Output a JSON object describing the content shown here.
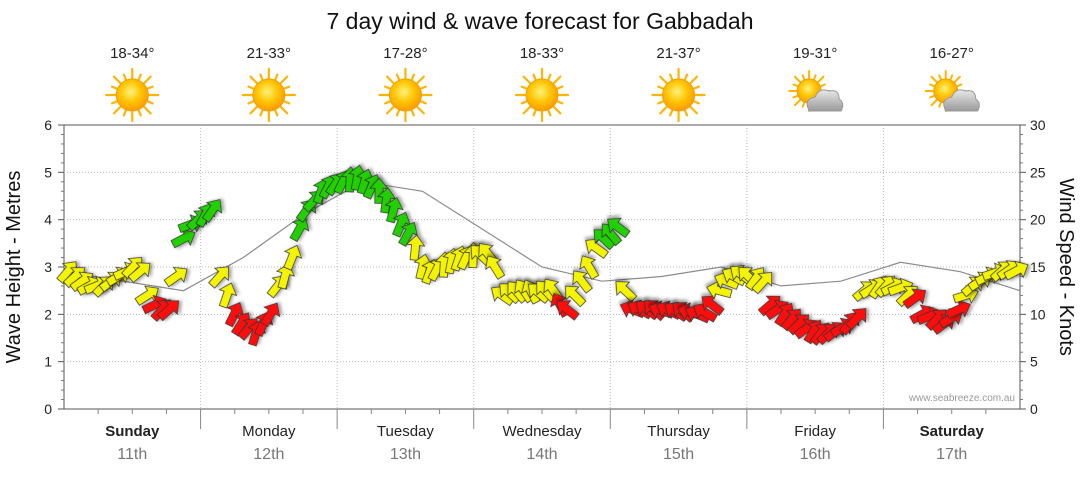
{
  "chart_data": {
    "type": "line",
    "title": "7 day wind & wave forecast for Gabbadah",
    "ylabel_left": "Wave Height - Metres",
    "ylabel_right": "Wind Speed - Knots",
    "ylim_left": [
      0,
      6
    ],
    "ylim_right": [
      0,
      30
    ],
    "yticks_left": [
      "0",
      "1",
      "2",
      "3",
      "4",
      "5",
      "6"
    ],
    "yticks_right": [
      "0",
      "5",
      "10",
      "15",
      "20",
      "25",
      "30"
    ],
    "grid": true,
    "watermark": "www.seabreeze.com.au",
    "days": [
      {
        "name": "Sunday",
        "date": "11th",
        "temp": "18-34°",
        "icon": "sun-icon",
        "bold": true
      },
      {
        "name": "Monday",
        "date": "12th",
        "temp": "21-33°",
        "icon": "sun-icon",
        "bold": false
      },
      {
        "name": "Tuesday",
        "date": "13th",
        "temp": "17-28°",
        "icon": "sun-icon",
        "bold": false
      },
      {
        "name": "Wednesday",
        "date": "14th",
        "temp": "18-33°",
        "icon": "sun-icon",
        "bold": false
      },
      {
        "name": "Thursday",
        "date": "15th",
        "temp": "21-37°",
        "icon": "sun-icon",
        "bold": false
      },
      {
        "name": "Friday",
        "date": "16th",
        "temp": "19-31°",
        "icon": "sun-cloud-icon",
        "bold": false
      },
      {
        "name": "Saturday",
        "date": "17th",
        "temp": "16-27°",
        "icon": "sun-cloud-icon",
        "bold": true
      }
    ],
    "wind_speed_knots": [
      14.5,
      14,
      13.5,
      13,
      13,
      13,
      13.5,
      14,
      14.5,
      15,
      14.5,
      12,
      11,
      10.5,
      10.5,
      14,
      18,
      19.5,
      20,
      20.5,
      21,
      14,
      12,
      10,
      9,
      8.5,
      8,
      9,
      10,
      13,
      14,
      16,
      19,
      21,
      22,
      23,
      23.5,
      23.8,
      24,
      24.2,
      24.4,
      24,
      23.5,
      23,
      22,
      21,
      19.5,
      18.5,
      17,
      15,
      14.5,
      14.8,
      15.2,
      15.6,
      15.9,
      16,
      16.2,
      16.3,
      16.4,
      15,
      12,
      12.3,
      12.4,
      12.5,
      12.4,
      12.3,
      12.5,
      12.6,
      11,
      10.5,
      12,
      13.5,
      15,
      17,
      18,
      18.5,
      19.2,
      12.5,
      10.5,
      10.5,
      10.5,
      10.5,
      10.4,
      10.4,
      10.3,
      10.3,
      10.2,
      10,
      10.2,
      11,
      12.5,
      13.5,
      14,
      14.2,
      14,
      13.8,
      13.4,
      11,
      10.5,
      10,
      9.5,
      9,
      8.5,
      8.2,
      8,
      8,
      8.2,
      8.6,
      9.1,
      9.6,
      12.5,
      12.7,
      12.9,
      13,
      12.9,
      12.8,
      12,
      11.7,
      10,
      9.8,
      9.5,
      9,
      9.6,
      10.5,
      12,
      13,
      13.5,
      14,
      14.4,
      14.6,
      14.7,
      14.6
    ],
    "wave_height_m": [
      2.9,
      2.7,
      2.5,
      3.2,
      4.1,
      4.8,
      4.6,
      3.8,
      3.0,
      2.7,
      2.8,
      3.0,
      2.6,
      2.7,
      3.1,
      2.9,
      2.5
    ],
    "wind_color_thresholds_knots": {
      "red_below": 12,
      "yellow_below": 18
    },
    "arrow_colors": {
      "red": "#ff1010",
      "yellow": "#f4f400",
      "green": "#22d000"
    },
    "wave_line_color": "#8c8c8c"
  }
}
